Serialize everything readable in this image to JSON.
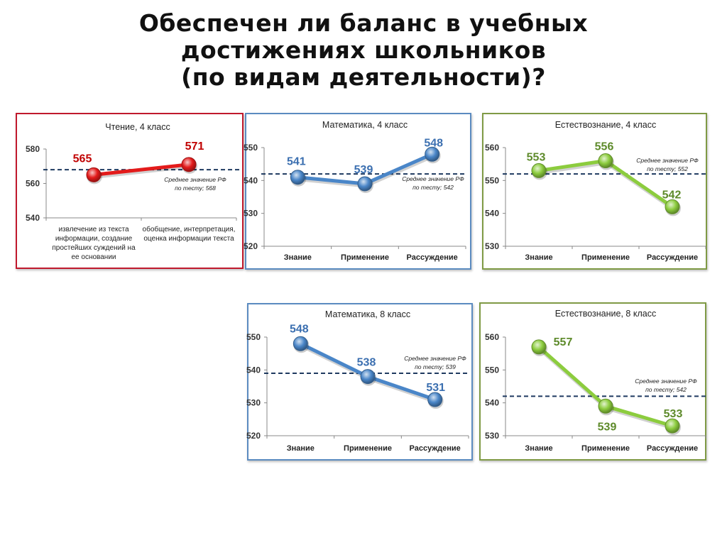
{
  "page": {
    "title_lines": [
      "Обеспечен ли баланс в учебных",
      "достижениях школьников",
      "(по видам деятельности)?"
    ]
  },
  "chart_data": [
    {
      "type": "line",
      "title": "Чтение, 4 класс",
      "categories": [
        "извлечение из текста информации, создание простейших суждений на ее основании",
        "обобщение, интерпретация, оценка информации текста"
      ],
      "category_lines": [
        [
          "извлечение из текста",
          "информации, создание",
          "простейших суждений на",
          "ее основании"
        ],
        [
          "обобщение, интерпретация,",
          "оценка информации текста"
        ]
      ],
      "values": [
        565,
        571
      ],
      "ylim": [
        540,
        580
      ],
      "yticks": [
        540,
        560,
        580
      ],
      "reference": {
        "value": 568,
        "label_lines": [
          "Среднее значение РФ",
          "по тесту; 568"
        ]
      },
      "color": "#e31b1b",
      "label_color": "#c00000",
      "border_color": "#c0192d"
    },
    {
      "type": "line",
      "title": "Математика, 4 класс",
      "categories": [
        "Знание",
        "Применение",
        "Рассуждение"
      ],
      "values": [
        541,
        539,
        548
      ],
      "ylim": [
        520,
        550
      ],
      "yticks": [
        520,
        530,
        540,
        550
      ],
      "reference": {
        "value": 542,
        "label_lines": [
          "Среднее значение РФ",
          "по тесту; 542"
        ]
      },
      "color": "#4a86c8",
      "label_color": "#3b6fb0",
      "border_color": "#5b8bc0"
    },
    {
      "type": "line",
      "title": "Естествознание, 4 класс",
      "categories": [
        "Знание",
        "Применение",
        "Рассуждение"
      ],
      "values": [
        553,
        556,
        542
      ],
      "ylim": [
        530,
        560
      ],
      "yticks": [
        530,
        540,
        550,
        560
      ],
      "reference": {
        "value": 552,
        "label_lines": [
          "Среднее значение РФ",
          "по тесту; 552"
        ]
      },
      "color": "#8ccc3e",
      "label_color": "#5d8a2a",
      "border_color": "#7f9a45"
    },
    {
      "type": "line",
      "title": "Математика, 8 класс",
      "categories": [
        "Знание",
        "Применение",
        "Рассуждение"
      ],
      "values": [
        548,
        538,
        531
      ],
      "ylim": [
        520,
        550
      ],
      "yticks": [
        520,
        530,
        540,
        550
      ],
      "reference": {
        "value": 539,
        "label_lines": [
          "Среднее значение РФ",
          "по тесту; 539"
        ]
      },
      "color": "#4a86c8",
      "label_color": "#3b6fb0",
      "border_color": "#5b8bc0"
    },
    {
      "type": "line",
      "title": "Естествознание, 8 класс",
      "categories": [
        "Знание",
        "Применение",
        "Рассуждение"
      ],
      "values": [
        557,
        539,
        533
      ],
      "ylim": [
        530,
        560
      ],
      "yticks": [
        530,
        540,
        550,
        560
      ],
      "reference": {
        "value": 542,
        "label_lines": [
          "Среднее значение РФ",
          "по тесту; 542"
        ]
      },
      "color": "#8ccc3e",
      "label_color": "#5d8a2a",
      "border_color": "#7f9a45"
    }
  ]
}
